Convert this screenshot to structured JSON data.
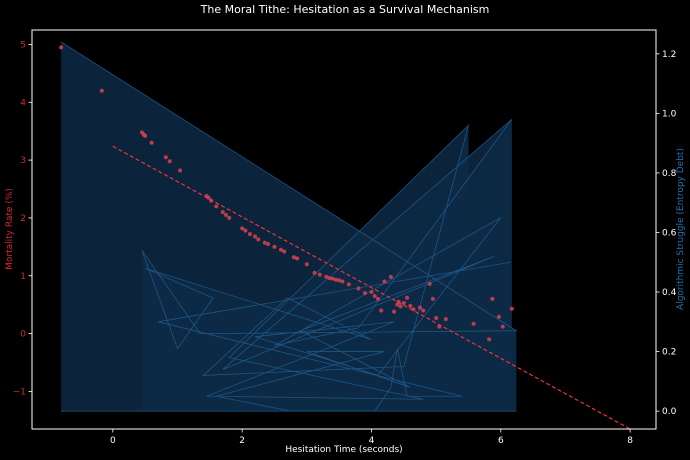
{
  "chart_data": {
    "type": "scatter",
    "title": "The Moral Tithe: Hesitation as a Survival Mechanism",
    "xlabel": "Hesitation Time (seconds)",
    "ylabel": "Mortality Rate (%)",
    "ylabel_right": "Algorithmic Struggle (Entropy Debt)",
    "xlim": [
      -1.25,
      8.4
    ],
    "ylim": [
      -1.65,
      5.25
    ],
    "ylim_right": [
      -0.06,
      1.28
    ],
    "xticks": [
      0,
      2,
      4,
      6,
      8
    ],
    "yticks": [
      -1,
      0,
      1,
      2,
      3,
      4,
      5
    ],
    "yticks_right": [
      0.0,
      0.2,
      0.4,
      0.6,
      0.8,
      1.0,
      1.2
    ],
    "grid": false,
    "legend": null,
    "colors": {
      "background": "#000000",
      "mortality": "#e0404f",
      "entropy_fill": "#0d2a45",
      "entropy_line": "#1f5a8c",
      "axis": "#ffffff",
      "left_axis_text": "#d62728",
      "right_axis_text": "#1f77b4"
    },
    "series": [
      {
        "name": "Mortality Rate (%)",
        "axis": "left",
        "type": "scatter",
        "points": [
          [
            -0.8,
            4.95
          ],
          [
            -0.17,
            4.2
          ],
          [
            0.45,
            3.48
          ],
          [
            0.48,
            3.44
          ],
          [
            0.5,
            3.42
          ],
          [
            0.6,
            3.3
          ],
          [
            0.82,
            3.05
          ],
          [
            0.88,
            2.98
          ],
          [
            1.04,
            2.82
          ],
          [
            1.45,
            2.38
          ],
          [
            1.48,
            2.35
          ],
          [
            1.52,
            2.3
          ],
          [
            1.6,
            2.2
          ],
          [
            1.7,
            2.1
          ],
          [
            1.75,
            2.05
          ],
          [
            1.8,
            2.0
          ],
          [
            2.0,
            1.82
          ],
          [
            2.05,
            1.78
          ],
          [
            2.12,
            1.72
          ],
          [
            2.2,
            1.68
          ],
          [
            2.25,
            1.63
          ],
          [
            2.35,
            1.57
          ],
          [
            2.4,
            1.55
          ],
          [
            2.5,
            1.5
          ],
          [
            2.6,
            1.45
          ],
          [
            2.65,
            1.42
          ],
          [
            2.8,
            1.32
          ],
          [
            2.85,
            1.3
          ],
          [
            3.0,
            1.2
          ],
          [
            3.12,
            1.05
          ],
          [
            3.2,
            1.02
          ],
          [
            3.3,
            0.98
          ],
          [
            3.35,
            0.96
          ],
          [
            3.4,
            0.95
          ],
          [
            3.45,
            0.93
          ],
          [
            3.5,
            0.92
          ],
          [
            3.55,
            0.9
          ],
          [
            3.65,
            0.85
          ],
          [
            3.8,
            0.78
          ],
          [
            3.9,
            0.7
          ],
          [
            4.0,
            0.72
          ],
          [
            4.05,
            0.65
          ],
          [
            4.1,
            0.6
          ],
          [
            4.15,
            0.4
          ],
          [
            4.2,
            0.9
          ],
          [
            4.3,
            0.98
          ],
          [
            4.35,
            0.38
          ],
          [
            4.4,
            0.5
          ],
          [
            4.42,
            0.55
          ],
          [
            4.45,
            0.47
          ],
          [
            4.5,
            0.53
          ],
          [
            4.55,
            0.62
          ],
          [
            4.6,
            0.48
          ],
          [
            4.65,
            0.42
          ],
          [
            4.75,
            0.45
          ],
          [
            4.8,
            0.4
          ],
          [
            4.9,
            0.86
          ],
          [
            4.95,
            0.6
          ],
          [
            5.0,
            0.27
          ],
          [
            5.05,
            0.12
          ],
          [
            5.15,
            0.25
          ],
          [
            5.58,
            0.17
          ],
          [
            5.82,
            -0.1
          ],
          [
            5.87,
            0.6
          ],
          [
            5.97,
            0.29
          ],
          [
            6.03,
            0.12
          ],
          [
            6.17,
            0.43
          ]
        ]
      },
      {
        "name": "Mortality trend",
        "axis": "left",
        "type": "line",
        "style": "dashed",
        "points": [
          [
            0,
            3.24
          ],
          [
            8,
            -1.65
          ]
        ]
      },
      {
        "name": "Algorithmic Struggle (Entropy Debt)",
        "axis": "right",
        "type": "area",
        "baseline": 0.0,
        "points": [
          [
            -0.8,
            1.24
          ],
          [
            6.24,
            0.27
          ],
          [
            1.35,
            0.26
          ],
          [
            0.45,
            0.54
          ],
          [
            1.0,
            0.21
          ],
          [
            1.55,
            0.38
          ],
          [
            0.5,
            0.48
          ],
          [
            4.0,
            0.24
          ],
          [
            2.7,
            0.38
          ],
          [
            1.4,
            0.12
          ],
          [
            4.5,
            0.15
          ],
          [
            5.5,
            0.96
          ],
          [
            1.8,
            0.18
          ],
          [
            4.8,
            0.04
          ],
          [
            1.45,
            0.05
          ],
          [
            4.35,
            0.3
          ],
          [
            2.2,
            0.25
          ],
          [
            4.1,
            0.12
          ],
          [
            6.0,
            0.65
          ],
          [
            2.5,
            0.22
          ],
          [
            3.8,
            0.28
          ],
          [
            6.17,
            0.98
          ],
          [
            1.7,
            0.14
          ],
          [
            5.9,
            0.52
          ],
          [
            2.9,
            0.27
          ],
          [
            4.6,
            0.08
          ],
          [
            3.0,
            0.2
          ],
          [
            4.2,
            0.2
          ],
          [
            1.6,
            0.05
          ],
          [
            2.75,
            0.0
          ],
          [
            4.05,
            0.0
          ],
          [
            4.3,
            0.08
          ],
          [
            4.4,
            0.21
          ],
          [
            4.55,
            0.05
          ],
          [
            5.4,
            0.05
          ],
          [
            0.7,
            0.3
          ],
          [
            6.15,
            0.5
          ]
        ]
      }
    ]
  }
}
